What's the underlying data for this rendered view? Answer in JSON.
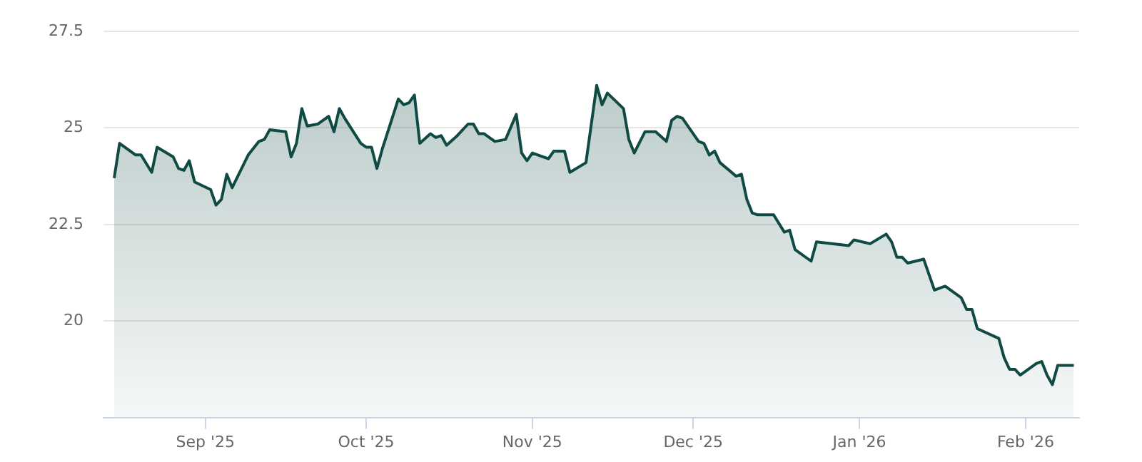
{
  "chart_data": {
    "type": "area",
    "x": [
      "2025-08-15",
      "2025-08-16",
      "2025-08-19",
      "2025-08-20",
      "2025-08-22",
      "2025-08-23",
      "2025-08-26",
      "2025-08-27",
      "2025-08-28",
      "2025-08-29",
      "2025-08-30",
      "2025-09-02",
      "2025-09-03",
      "2025-09-04",
      "2025-09-05",
      "2025-09-06",
      "2025-09-09",
      "2025-09-11",
      "2025-09-12",
      "2025-09-13",
      "2025-09-16",
      "2025-09-17",
      "2025-09-18",
      "2025-09-19",
      "2025-09-20",
      "2025-09-22",
      "2025-09-24",
      "2025-09-25",
      "2025-09-26",
      "2025-09-27",
      "2025-09-30",
      "2025-10-01",
      "2025-10-02",
      "2025-10-03",
      "2025-10-04",
      "2025-10-07",
      "2025-10-08",
      "2025-10-09",
      "2025-10-10",
      "2025-10-11",
      "2025-10-13",
      "2025-10-14",
      "2025-10-15",
      "2025-10-16",
      "2025-10-18",
      "2025-10-20",
      "2025-10-21",
      "2025-10-22",
      "2025-10-23",
      "2025-10-25",
      "2025-10-27",
      "2025-10-29",
      "2025-10-30",
      "2025-10-31",
      "2025-11-01",
      "2025-11-04",
      "2025-11-05",
      "2025-11-07",
      "2025-11-08",
      "2025-11-11",
      "2025-11-13",
      "2025-11-14",
      "2025-11-15",
      "2025-11-18",
      "2025-11-19",
      "2025-11-20",
      "2025-11-22",
      "2025-11-24",
      "2025-11-26",
      "2025-11-27",
      "2025-11-28",
      "2025-11-29",
      "2025-12-02",
      "2025-12-03",
      "2025-12-04",
      "2025-12-05",
      "2025-12-06",
      "2025-12-09",
      "2025-12-10",
      "2025-12-11",
      "2025-12-12",
      "2025-12-13",
      "2025-12-16",
      "2025-12-18",
      "2025-12-19",
      "2025-12-20",
      "2025-12-23",
      "2025-12-24",
      "2025-12-30",
      "2025-12-31",
      "2026-01-03",
      "2026-01-06",
      "2026-01-07",
      "2026-01-08",
      "2026-01-09",
      "2026-01-10",
      "2026-01-13",
      "2026-01-15",
      "2026-01-17",
      "2026-01-20",
      "2026-01-21",
      "2026-01-22",
      "2026-01-23",
      "2026-01-27",
      "2026-01-28",
      "2026-01-29",
      "2026-01-30",
      "2026-01-31",
      "2026-02-03",
      "2026-02-04",
      "2026-02-05",
      "2026-02-06",
      "2026-02-07",
      "2026-02-10"
    ],
    "series": [
      {
        "color": "#0f4a44",
        "values": [
          23.7,
          24.6,
          24.3,
          24.3,
          23.85,
          24.5,
          24.25,
          23.95,
          23.9,
          24.15,
          23.6,
          23.4,
          23.0,
          23.15,
          23.8,
          23.45,
          24.3,
          24.65,
          24.7,
          24.95,
          24.9,
          24.25,
          24.6,
          25.5,
          25.05,
          25.1,
          25.3,
          24.9,
          25.5,
          25.25,
          24.6,
          24.5,
          24.5,
          23.95,
          24.45,
          25.75,
          25.6,
          25.65,
          25.85,
          24.6,
          24.85,
          24.75,
          24.8,
          24.55,
          24.8,
          25.1,
          25.1,
          24.85,
          24.85,
          24.65,
          24.7,
          25.35,
          24.35,
          24.15,
          24.35,
          24.2,
          24.4,
          24.4,
          23.85,
          24.1,
          26.1,
          25.6,
          25.9,
          25.5,
          24.7,
          24.35,
          24.9,
          24.9,
          24.65,
          25.2,
          25.3,
          25.25,
          24.65,
          24.6,
          24.3,
          24.4,
          24.1,
          23.75,
          23.8,
          23.15,
          22.8,
          22.75,
          22.75,
          22.3,
          22.35,
          21.85,
          21.55,
          22.05,
          21.95,
          22.1,
          22.0,
          22.25,
          22.05,
          21.65,
          21.65,
          21.5,
          21.6,
          20.8,
          20.9,
          20.6,
          20.3,
          20.3,
          19.8,
          19.55,
          19.05,
          18.75,
          18.75,
          18.6,
          18.9,
          18.95,
          18.6,
          18.35,
          18.85,
          18.85
        ]
      }
    ],
    "xlim": [
      "2025-08-13",
      "2026-02-11"
    ],
    "xticks": [
      {
        "value": "2025-09-01",
        "label": "Sep '25"
      },
      {
        "value": "2025-10-01",
        "label": "Oct '25"
      },
      {
        "value": "2025-11-01",
        "label": "Nov '25"
      },
      {
        "value": "2025-12-01",
        "label": "Dec '25"
      },
      {
        "value": "2026-01-01",
        "label": "Jan '26"
      },
      {
        "value": "2026-02-01",
        "label": "Feb '26"
      }
    ],
    "ylim": [
      17.5,
      27.5
    ],
    "yticks": [
      {
        "value": 20,
        "label": "20"
      },
      {
        "value": 22.5,
        "label": "22.5"
      },
      {
        "value": 25,
        "label": "25"
      },
      {
        "value": 27.5,
        "label": "27.5"
      }
    ],
    "grid": "y",
    "legend": false
  }
}
